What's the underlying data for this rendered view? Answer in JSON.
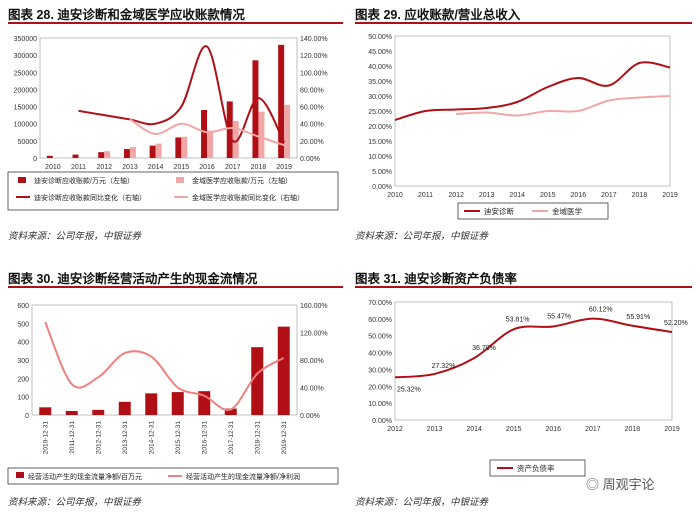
{
  "colors": {
    "dark": "#b01015",
    "light": "#f2a7a7",
    "border": "#222"
  },
  "charts": [
    {
      "title": "图表 28. 迪安诊断和金域医学应收账款情况",
      "source": "资料来源：公司年报，中银证券",
      "chart_data": {
        "type": "bar",
        "categories": [
          "2010",
          "2011",
          "2012",
          "2013",
          "2014",
          "2015",
          "2016",
          "2017",
          "2018",
          "2019"
        ],
        "series": [
          {
            "name": "迪安诊断应收账款/万元（左轴）",
            "type": "bar",
            "axis": "left",
            "values": [
              6500,
              10000,
              17000,
              26000,
              36000,
              60000,
              140000,
              165000,
              285000,
              330000
            ]
          },
          {
            "name": "金域医学应收账款/万元（左轴）",
            "type": "bar",
            "axis": "left",
            "values": [
              null,
              null,
              20000,
              32000,
              42000,
              62000,
              80000,
              108000,
              135000,
              155000
            ]
          },
          {
            "name": "迪安诊断应收账款同比变化（右轴）",
            "type": "line",
            "axis": "right",
            "values": [
              null,
              55,
              50,
              45,
              40,
              60,
              130,
              20,
              70,
              18
            ]
          },
          {
            "name": "金域医学应收账款同比变化（右轴）",
            "type": "line",
            "axis": "right",
            "values": [
              null,
              null,
              null,
              45,
              28,
              40,
              30,
              35,
              25,
              15
            ]
          }
        ],
        "left_ticks": [
          "0",
          "50000",
          "100000",
          "150000",
          "200000",
          "250000",
          "300000",
          "350000"
        ],
        "right_ticks": [
          "0.00%",
          "20.00%",
          "40.00%",
          "60.00%",
          "80.00%",
          "100.00%",
          "120.00%",
          "140.00%"
        ],
        "ylim": [
          0,
          350000
        ],
        "y2lim": [
          0,
          140
        ]
      }
    },
    {
      "title": "图表 29. 应收账款/营业总收入",
      "source": "资料来源：公司年报，中银证券",
      "chart_data": {
        "type": "line",
        "categories": [
          "2010",
          "2011",
          "2012",
          "2013",
          "2014",
          "2015",
          "2016",
          "2017",
          "2018",
          "2019"
        ],
        "series": [
          {
            "name": "迪安诊断",
            "values": [
              22,
              25,
              25.5,
              26,
              28,
              33,
              36,
              33.5,
              41,
              39.5
            ]
          },
          {
            "name": "金域医学",
            "values": [
              null,
              null,
              24,
              24.5,
              23.5,
              25,
              25,
              28.5,
              29.5,
              30
            ]
          }
        ],
        "left_ticks": [
          "0.00%",
          "5.00%",
          "10.00%",
          "15.00%",
          "20.00%",
          "25.00%",
          "30.00%",
          "35.00%",
          "40.00%",
          "45.00%",
          "50.00%"
        ],
        "ylim": [
          0,
          50
        ]
      }
    },
    {
      "title": "图表 30. 迪安诊断经营活动产生的现金流情况",
      "source": "资料来源：公司年报，中银证券",
      "chart_data": {
        "type": "bar",
        "categories": [
          "2010-12-31",
          "2011-12-31",
          "2012-12-31",
          "2013-12-31",
          "2014-12-31",
          "2015-12-31",
          "2016-12-31",
          "2017-12-31",
          "2018-12-31",
          "2019-12-31"
        ],
        "series": [
          {
            "name": "经营活动产生的现金流量净额/百万元",
            "type": "bar",
            "axis": "left",
            "values": [
              42,
              22,
              28,
              72,
              118,
              125,
              130,
              35,
              370,
              482
            ]
          },
          {
            "name": "经营活动产生的现金流量净额/净利润",
            "type": "line",
            "axis": "right",
            "values": [
              135,
              45,
              55,
              90,
              85,
              40,
              28,
              8,
              60,
              83
            ]
          }
        ],
        "left_ticks": [
          "0",
          "100",
          "200",
          "300",
          "400",
          "500",
          "600"
        ],
        "right_ticks": [
          "0.00%",
          "40.00%",
          "80.00%",
          "120.00%",
          "160.00%"
        ],
        "ylim": [
          0,
          600
        ],
        "y2lim": [
          0,
          160
        ]
      }
    },
    {
      "title": "图表 31. 迪安诊断资产负债率",
      "source": "资料来源：公司年报，中银证券",
      "chart_data": {
        "type": "line",
        "categories": [
          "2012",
          "2013",
          "2014",
          "2015",
          "2016",
          "2017",
          "2018",
          "2019"
        ],
        "series": [
          {
            "name": "资产负债率",
            "values": [
              25.32,
              27.32,
              36.7,
              53.81,
              55.47,
              60.12,
              55.91,
              52.2
            ]
          }
        ],
        "labels": [
          "25.32%",
          "27.32%",
          "36.70%",
          "53.81%",
          "55.47%",
          "60.12%",
          "55.91%",
          "52.20%"
        ],
        "left_ticks": [
          "0.00%",
          "10.00%",
          "20.00%",
          "30.00%",
          "40.00%",
          "50.00%",
          "60.00%",
          "70.00%"
        ],
        "ylim": [
          0,
          70
        ]
      }
    }
  ],
  "watermark": "周观宇论"
}
